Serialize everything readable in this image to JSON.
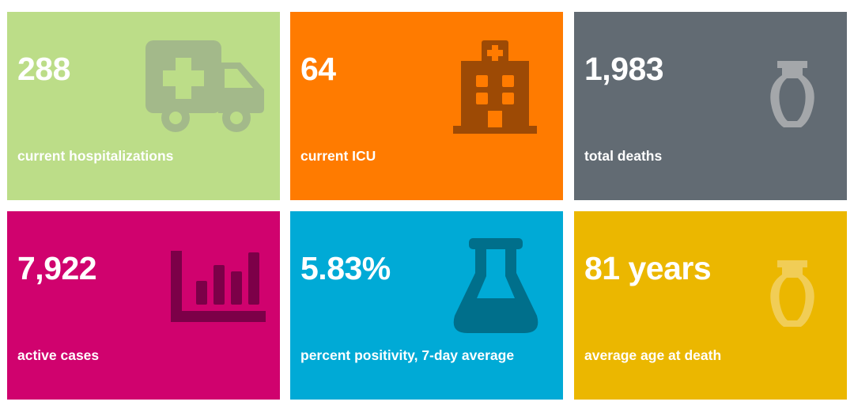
{
  "colors": {
    "green": "#bcdd88",
    "orange": "#ff7b00",
    "gray": "#626b73",
    "magenta": "#d0026e",
    "blue": "#00aad6",
    "yellow": "#ebb700",
    "green_icon": "#a3b98a",
    "orange_icon": "#9d4a05",
    "gray_icon": "#a4a7aa",
    "magenta_icon": "#7c0048",
    "blue_icon": "#006f8b",
    "yellow_icon": "#f1cd56"
  },
  "cards": [
    {
      "value": "288",
      "label": "current hospitalizations",
      "icon": "ambulance-icon"
    },
    {
      "value": "64",
      "label": "current ICU",
      "icon": "hospital-building-icon"
    },
    {
      "value": "1,983",
      "label": "total deaths",
      "icon": "urn-icon"
    },
    {
      "value": "7,922",
      "label": "active cases",
      "icon": "bar-chart-icon"
    },
    {
      "value": "5.83%",
      "label": "percent positivity, 7-day average",
      "icon": "flask-icon"
    },
    {
      "value": "81 years",
      "label": "average age at death",
      "icon": "urn-icon"
    }
  ]
}
